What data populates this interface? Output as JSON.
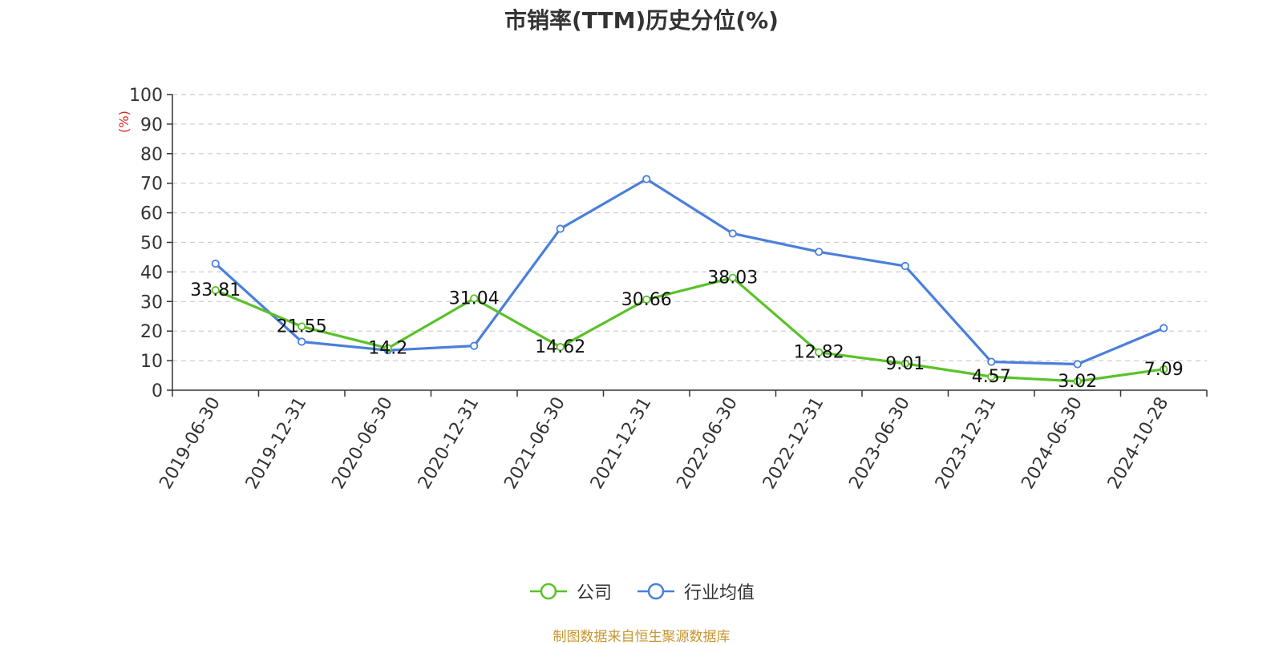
{
  "chart_data": {
    "type": "line",
    "title": "市销率(TTM)历史分位(%)",
    "ylabel": "(%)",
    "ylim": [
      0,
      100
    ],
    "yticks": [
      0,
      10,
      20,
      30,
      40,
      50,
      60,
      70,
      80,
      90,
      100
    ],
    "grid": true,
    "legend_position": "bottom",
    "categories": [
      "2019-06-30",
      "2019-12-31",
      "2020-06-30",
      "2020-12-31",
      "2021-06-30",
      "2021-12-31",
      "2022-06-30",
      "2022-12-31",
      "2023-06-30",
      "2023-12-31",
      "2024-06-30",
      "2024-10-28"
    ],
    "series": [
      {
        "name": "公司",
        "color": "#5ac229",
        "values": [
          33.81,
          21.55,
          14.2,
          31.04,
          14.62,
          30.66,
          38.03,
          12.82,
          9.01,
          4.57,
          3.02,
          7.09
        ],
        "data_labels": [
          "33.81",
          "21.55",
          "14.2",
          "31.04",
          "14.62",
          "30.66",
          "38.03",
          "12.82",
          "9.01",
          "4.57",
          "3.02",
          "7.09"
        ]
      },
      {
        "name": "行业均值",
        "color": "#4a7fdc",
        "values": [
          42.8,
          16.4,
          13.5,
          15.0,
          54.6,
          71.4,
          53.0,
          46.8,
          42.0,
          9.6,
          8.8,
          21.0
        ]
      }
    ]
  },
  "source_note": "制图数据来自恒生聚源数据库"
}
